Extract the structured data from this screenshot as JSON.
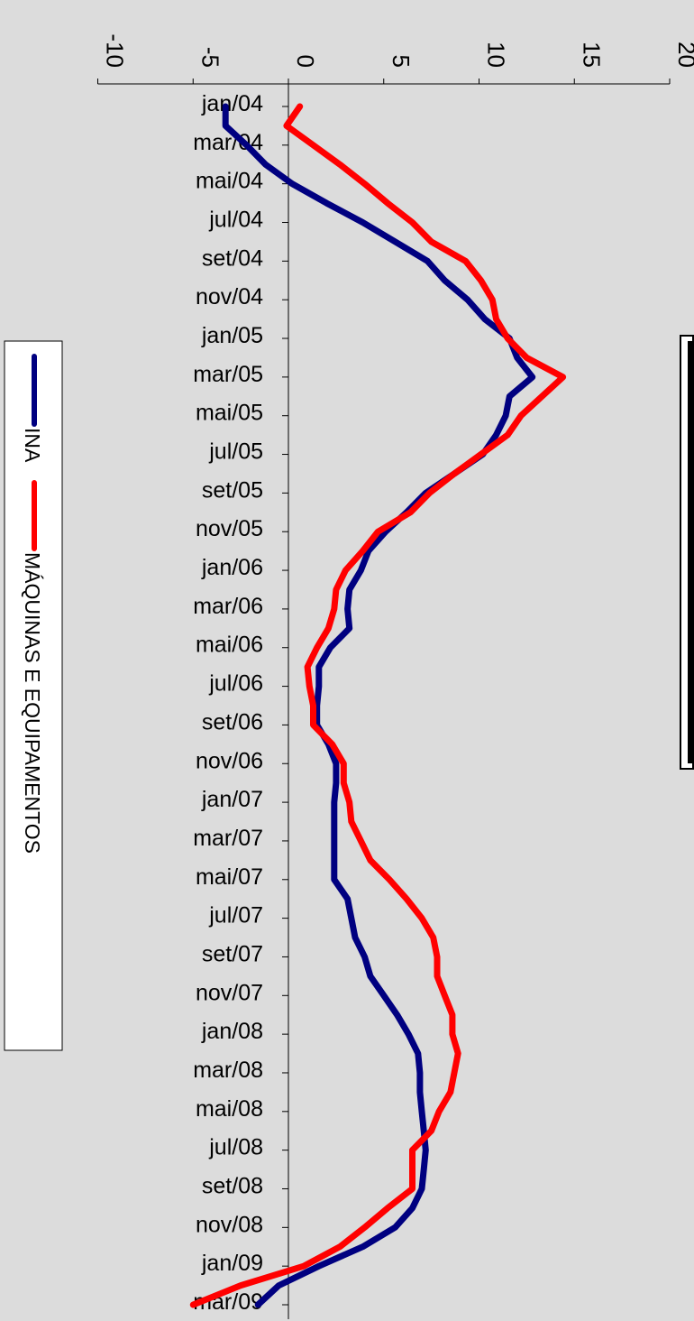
{
  "chart_data": {
    "type": "line",
    "orientation": "rotated-90-clockwise",
    "background_color": "#dcdcdc",
    "grid": false,
    "legend_placement": "left",
    "categories": [
      "jan/04",
      "fev/04",
      "mar/04",
      "abr/04",
      "mai/04",
      "jun/04",
      "jul/04",
      "ago/04",
      "set/04",
      "out/04",
      "nov/04",
      "dez/04",
      "jan/05",
      "fev/05",
      "mar/05",
      "abr/05",
      "mai/05",
      "jun/05",
      "jul/05",
      "ago/05",
      "set/05",
      "out/05",
      "nov/05",
      "dez/05",
      "jan/06",
      "fev/06",
      "mar/06",
      "abr/06",
      "mai/06",
      "jun/06",
      "jul/06",
      "ago/06",
      "set/06",
      "out/06",
      "nov/06",
      "dez/06",
      "jan/07",
      "fev/07",
      "mar/07",
      "abr/07",
      "mai/07",
      "jun/07",
      "jul/07",
      "ago/07",
      "set/07",
      "out/07",
      "nov/07",
      "dez/07",
      "jan/08",
      "fev/08",
      "mar/08",
      "abr/08",
      "mai/08",
      "jun/08",
      "jul/08",
      "ago/08",
      "set/08",
      "out/08",
      "nov/08",
      "dez/08",
      "jan/09",
      "fev/09",
      "mar/09"
    ],
    "tick_labels": [
      "jan/04",
      "mar/04",
      "mai/04",
      "jul/04",
      "set/04",
      "nov/04",
      "jan/05",
      "mar/05",
      "mai/05",
      "jul/05",
      "set/05",
      "nov/05",
      "jan/06",
      "mar/06",
      "mai/06",
      "jul/06",
      "set/06",
      "nov/06",
      "jan/07",
      "mar/07",
      "mai/07",
      "jul/07",
      "set/07",
      "nov/07",
      "jan/08",
      "mar/08",
      "mai/08",
      "jul/08",
      "set/08",
      "nov/08",
      "jan/09",
      "mar/09"
    ],
    "y_ticks": [
      "-10",
      "-5",
      "0",
      "5",
      "10",
      "15",
      "20"
    ],
    "ylim": [
      -10,
      20
    ],
    "series": [
      {
        "name": "INA",
        "color": "#000080",
        "values": [
          -3.3,
          -3.3,
          -2.2,
          -1.2,
          0.2,
          2.0,
          3.9,
          5.6,
          7.3,
          8.2,
          9.4,
          10.3,
          11.6,
          12.0,
          12.8,
          11.6,
          11.4,
          10.9,
          10.2,
          8.7,
          7.2,
          6.2,
          5.1,
          4.2,
          3.8,
          3.2,
          3.1,
          3.2,
          2.2,
          1.6,
          1.6,
          1.5,
          1.5,
          2.1,
          2.5,
          2.5,
          2.4,
          2.4,
          2.4,
          2.4,
          2.4,
          3.1,
          3.3,
          3.5,
          4.0,
          4.3,
          5.0,
          5.7,
          6.3,
          6.8,
          6.9,
          6.9,
          7.0,
          7.1,
          7.2,
          7.1,
          7.0,
          6.5,
          5.6,
          3.9,
          1.6,
          -0.5,
          -1.6
        ]
      },
      {
        "name": "MÁQUINAS E EQUIPAMENTOS",
        "color": "#ff0000",
        "values": [
          0.6,
          -0.1,
          1.3,
          2.7,
          4.0,
          5.2,
          6.5,
          7.5,
          9.3,
          10.1,
          10.7,
          10.9,
          11.5,
          12.5,
          14.4,
          13.3,
          12.2,
          11.5,
          10.1,
          8.7,
          7.4,
          6.4,
          4.7,
          3.9,
          3.0,
          2.5,
          2.4,
          2.1,
          1.5,
          1.0,
          1.1,
          1.3,
          1.3,
          2.3,
          2.9,
          2.9,
          3.2,
          3.3,
          3.8,
          4.3,
          5.3,
          6.2,
          7.0,
          7.6,
          7.8,
          7.8,
          8.2,
          8.6,
          8.6,
          8.9,
          8.7,
          8.5,
          7.9,
          7.5,
          6.5,
          6.5,
          6.5,
          5.2,
          4.0,
          2.7,
          0.8,
          -2.5,
          -5.0
        ]
      }
    ]
  }
}
